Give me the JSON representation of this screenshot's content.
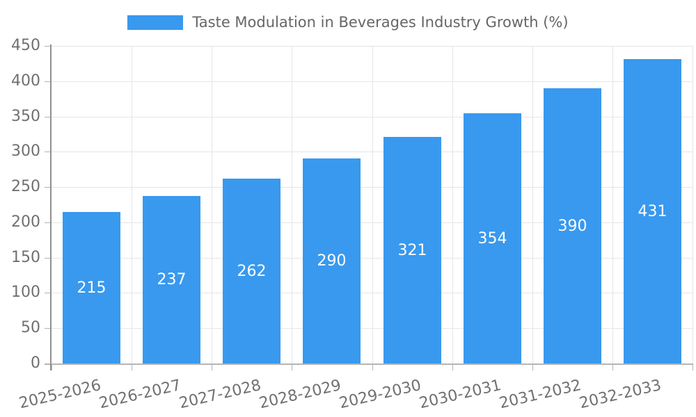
{
  "chart_data": {
    "type": "bar",
    "title": "Taste Modulation in Beverages Industry Growth (%)",
    "legend": {
      "label": "Taste Modulation in Beverages Industry Growth (%)",
      "position": "top"
    },
    "categories": [
      "2025-2026",
      "2026-2027",
      "2027-2028",
      "2028-2029",
      "2029-2030",
      "2030-2031",
      "2031-2032",
      "2032-2033"
    ],
    "series": [
      {
        "name": "Taste Modulation in Beverages Industry Growth (%)",
        "values": [
          215,
          237,
          262,
          290,
          321,
          354,
          390,
          431
        ]
      }
    ],
    "value_labels_shown": true,
    "xlabel": "",
    "ylabel": "",
    "ylim": [
      0,
      450
    ],
    "yticks": [
      0,
      50,
      100,
      150,
      200,
      250,
      300,
      350,
      400,
      450
    ],
    "grid": true,
    "x_tick_rotation_deg": -13,
    "colors": {
      "bar": "#3999ee",
      "value_label": "#ffffff",
      "tick_text": "#707070",
      "legend_text": "#666666",
      "grid_line": "#e5e5e5",
      "axis_line_left": "#909090",
      "axis_line_bottom": "#b5b5b5",
      "tick_mark": "#b3b3b3",
      "background": "#ffffff"
    }
  }
}
